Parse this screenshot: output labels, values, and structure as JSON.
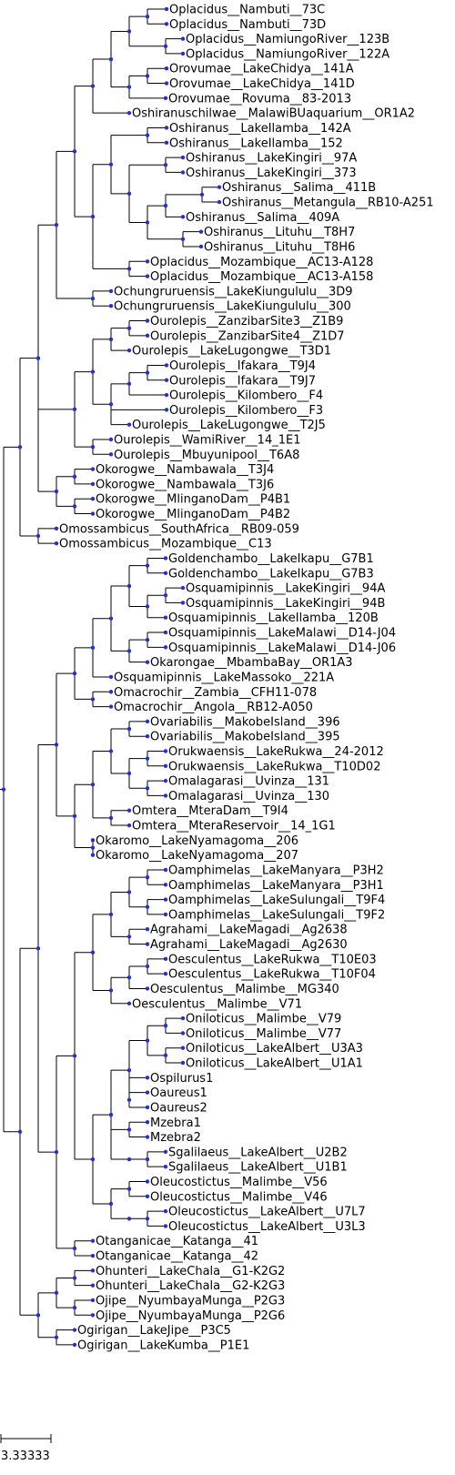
{
  "tree": {
    "colors": {
      "branch": "#000000",
      "node": "#2233cc"
    },
    "scale_bar": {
      "label": "3.33333"
    },
    "leaves": [
      "Oplacidus__Nambuti__73C",
      "Oplacidus__Nambuti__73D",
      "Oplacidus__NamiungoRiver__123B",
      "Oplacidus__NamiungoRiver__122A",
      "Orovumae__LakeChidya__141A",
      "Orovumae__LakeChidya__141D",
      "Orovumae__Rovuma__83-2013",
      "Oshiranuschilwae__MalawiBUaquarium__OR1A2",
      "Oshiranus__LakeIlamba__142A",
      "Oshiranus__LakeIlamba__152",
      "Oshiranus__LakeKingiri__97A",
      "Oshiranus__LakeKingiri__373",
      "Oshiranus__Salima__411B",
      "Oshiranus__Metangula__RB10-A251",
      "Oshiranus__Salima__409A",
      "Oshiranus__Lituhu__T8H7",
      "Oshiranus__Lituhu__T8H6",
      "Oplacidus__Mozambique__AC13-A128",
      "Oplacidus__Mozambique__AC13-A158",
      "Ochungruruensis__LakeKiungululu__3D9",
      "Ochungruruensis__LakeKiungululu__300",
      "Ourolepis__ZanzibarSite3__Z1B9",
      "Ourolepis__ZanzibarSite4__Z1D7",
      "Ourolepis__LakeLugongwe__T3D1",
      "Ourolepis__Ifakara__T9J4",
      "Ourolepis__Ifakara__T9J7",
      "Ourolepis__Kilombero__F4",
      "Ourolepis__Kilombero__F3",
      "Ourolepis__LakeLugongwe__T2J5",
      "Ourolepis__WamiRiver__14_1E1",
      "Ourolepis__Mbuyunipool__T6A8",
      "Okorogwe__Nambawala__T3J4",
      "Okorogwe__Nambawala__T3J6",
      "Okorogwe__MlinganoDam__P4B1",
      "Okorogwe__MlinganoDam__P4B2",
      "Omossambicus__SouthAfrica__RB09-059",
      "Omossambicus__Mozambique__C13",
      "Goldenchambo__LakeIkapu__G7B1",
      "Goldenchambo__LakeIkapu__G7B3",
      "Osquamipinnis__LakeKingiri__94A",
      "Osquamipinnis__LakeKingiri__94B",
      "Osquamipinnis__LakeIlamba__120B",
      "Osquamipinnis__LakeMalawi__D14-J04",
      "Osquamipinnis__LakeMalawi__D14-J06",
      "Okarongae__MbambaBay__OR1A3",
      "Osquamipinnis__LakeMassoko__221A",
      "Omacrochir__Zambia__CFH11-078",
      "Omacrochir__Angola__RB12-A050",
      "Ovariabilis__MakobeIsland__396",
      "Ovariabilis__MakobeIsland__395",
      "Orukwaensis__LakeRukwa__24-2012",
      "Orukwaensis__LakeRukwa__T10D02",
      "Omalagarasi__Uvinza__131",
      "Omalagarasi__Uvinza__130",
      "Omtera__MteraDam__T9I4",
      "Omtera__MteraReservoir__14_1G1",
      "Okaromo__LakeNyamagoma__206",
      "Okaromo__LakeNyamagoma__207",
      "Oamphimelas__LakeManyara__P3H2",
      "Oamphimelas__LakeManyara__P3H1",
      "Oamphimelas__LakeSulungali__T9F4",
      "Oamphimelas__LakeSulungali__T9F2",
      "Agrahami__LakeMagadi__Ag2638",
      "Agrahami__LakeMagadi__Ag2630",
      "Oesculentus__LakeRukwa__T10E03",
      "Oesculentus__LakeRukwa__T10F04",
      "Oesculentus__Malimbe__MG340",
      "Oesculentus__Malimbe__V71",
      "Oniloticus__Malimbe__V79",
      "Oniloticus__Malimbe__V77",
      "Oniloticus__LakeAlbert__U3A3",
      "Oniloticus__LakeAlbert__U1A1",
      "Ospilurus1",
      "Oaureus1",
      "Oaureus2",
      "Mzebra1",
      "Mzebra2",
      "Sgalilaeus__LakeAlbert__U2B2",
      "Sgalilaeus__LakeAlbert__U1B1",
      "Oleucostictus__Malimbe__V56",
      "Oleucostictus__Malimbe__V46",
      "Oleucostictus__LakeAlbert__U7L7",
      "Oleucostictus__LakeAlbert__U3L3",
      "Otanganicae__Katanga__41",
      "Otanganicae__Katanga__42",
      "Ohunteri__LakeChala__G1-K2G2",
      "Ohunteri__LakeChala__G2-K2G3",
      "Ojipe__NyumbayaMunga__P2G3",
      "Ojipe__NyumbayaMunga__P2G6",
      "Ogirigan__LakeJipe__P3C5",
      "Ogirigan__LakeKumba__P1E1"
    ]
  }
}
